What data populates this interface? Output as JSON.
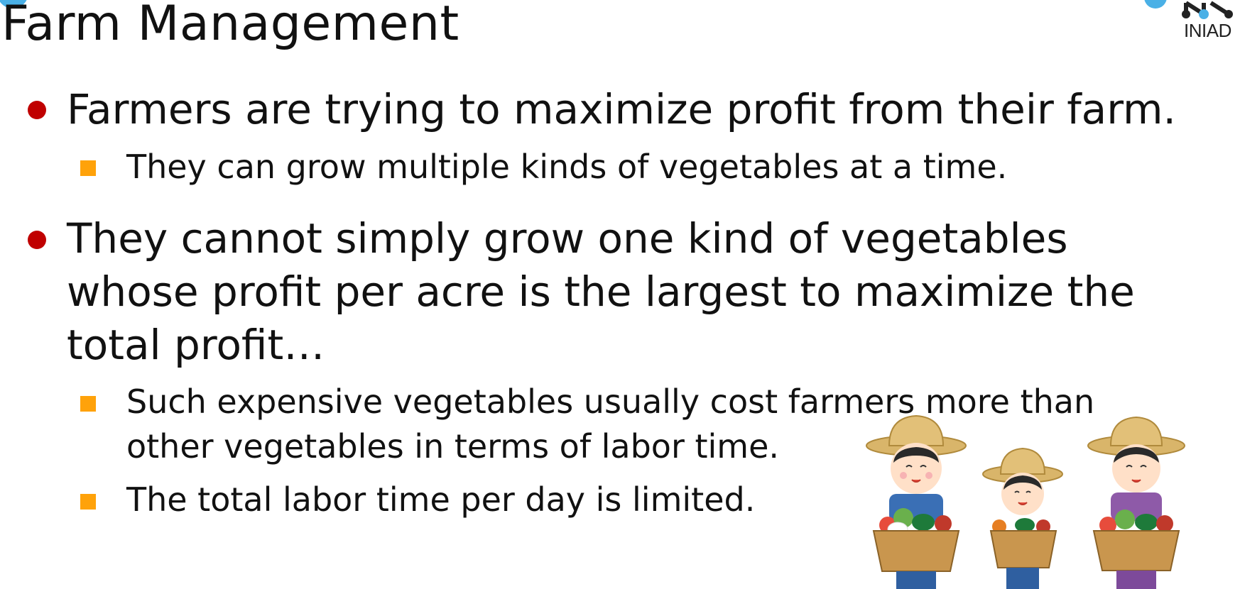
{
  "slide": {
    "title": "Farm Management",
    "logo_text": "INIAD",
    "bullets": [
      {
        "text": "Farmers are trying to maximize profit from their farm.",
        "subs": [
          "They can grow multiple kinds of vegetables at a time."
        ]
      },
      {
        "lines": [
          "They cannot simply grow one kind of vegetables",
          "whose profit per acre is the largest to maximize the",
          "total profit…"
        ],
        "subs": [
          {
            "lines": [
              "Such expensive vegetables usually cost farmers more than",
              "other vegetables in terms of labor time."
            ]
          },
          {
            "lines": [
              "The total labor time per day is limited."
            ]
          }
        ]
      }
    ]
  },
  "colors": {
    "bullet_dot": "#c00000",
    "sub_bullet_square": "#ffa20a",
    "accent_blue": "#4ab0e6"
  },
  "illustration": {
    "icon": "farmers-with-vegetable-baskets"
  }
}
